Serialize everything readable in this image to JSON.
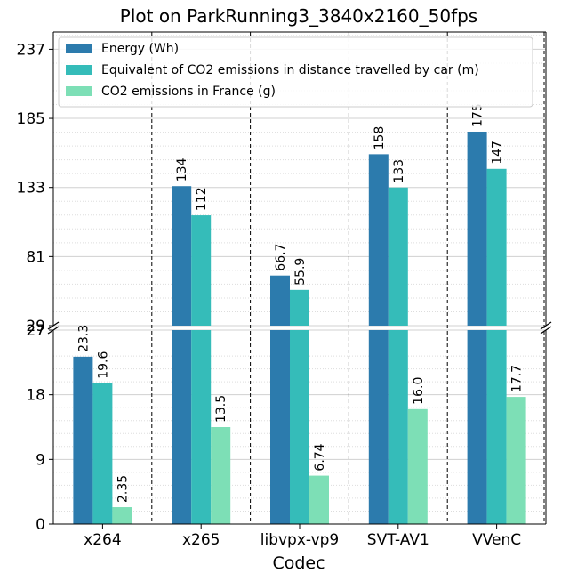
{
  "chart_data": {
    "type": "bar",
    "title": "Plot on ParkRunning3_3840x2160_50fps",
    "xlabel": "Codec",
    "ylabel": "",
    "categories": [
      "x264",
      "x265",
      "libvpx-vp9",
      "SVT-AV1",
      "VVenC"
    ],
    "series": [
      {
        "name": "Energy (Wh)",
        "color": "#2c7bad",
        "values": [
          23.3,
          134,
          66.7,
          158,
          175
        ],
        "labels": [
          "23.3",
          "134",
          "66.7",
          "158",
          "175"
        ]
      },
      {
        "name": "Equivalent of CO2 emissions in distance travelled by car (m)",
        "color": "#35bcb9",
        "values": [
          19.6,
          112,
          55.9,
          133,
          147
        ],
        "labels": [
          "19.6",
          "112",
          "55.9",
          "133",
          "147"
        ]
      },
      {
        "name": "CO2 emissions in France (g)",
        "color": "#7ddfb6",
        "values": [
          2.35,
          13.5,
          6.74,
          16.0,
          17.7
        ],
        "labels": [
          "2.35",
          "13.5",
          "6.74",
          "16.0",
          "17.7"
        ]
      }
    ],
    "broken_axis": true,
    "lower_axis": {
      "ylim": [
        0,
        27
      ],
      "ticks": [
        0,
        9,
        18,
        27
      ],
      "tick_labels": [
        "0",
        "9",
        "18",
        "27"
      ]
    },
    "upper_axis": {
      "ylim": [
        29,
        250
      ],
      "ticks": [
        29,
        81,
        133,
        185,
        237
      ],
      "tick_labels": [
        "29",
        "81",
        "133",
        "185",
        "237"
      ]
    },
    "grid": true,
    "legend_position": "top"
  }
}
